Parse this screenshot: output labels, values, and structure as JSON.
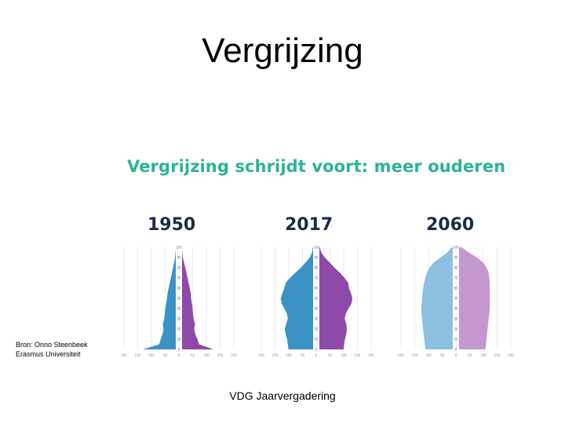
{
  "slide": {
    "title": "Vergrijzing",
    "source_line1": "Bron: Onno Steenbeek",
    "source_line2": "Erasmus Universiteit",
    "footer": "VDG Jaarvergadering"
  },
  "chart_data": {
    "type": "population-pyramid",
    "title": "Vergrijzing schrijdt voort: meer ouderen",
    "colors": {
      "male": "#3a93c4",
      "female": "#8e4aa8",
      "male_light": "#8dbfdf",
      "female_light": "#c498cf"
    },
    "age_ticks": [
      0,
      10,
      20,
      30,
      40,
      50,
      60,
      70,
      80,
      90,
      100
    ],
    "x_ticks": [
      200,
      150,
      100,
      50,
      0,
      50,
      100,
      150,
      200
    ],
    "xlim": [
      0,
      200
    ],
    "pyramids": [
      {
        "year": "1950",
        "ages": [
          0,
          5,
          10,
          15,
          20,
          25,
          30,
          35,
          40,
          45,
          50,
          55,
          60,
          65,
          70,
          75,
          80,
          85,
          90,
          95,
          100
        ],
        "male": [
          120,
          60,
          55,
          48,
          45,
          47,
          42,
          40,
          38,
          35,
          32,
          30,
          26,
          22,
          18,
          14,
          10,
          6,
          3,
          1,
          0
        ],
        "female": [
          115,
          62,
          56,
          48,
          44,
          47,
          42,
          40,
          38,
          36,
          33,
          32,
          28,
          24,
          20,
          16,
          12,
          7,
          3,
          1,
          0
        ]
      },
      {
        "year": "2017",
        "ages": [
          0,
          5,
          10,
          15,
          20,
          25,
          30,
          35,
          40,
          45,
          50,
          55,
          60,
          65,
          70,
          75,
          80,
          85,
          90,
          95,
          100
        ],
        "male": [
          90,
          92,
          95,
          100,
          103,
          98,
          92,
          95,
          105,
          115,
          118,
          112,
          105,
          100,
          85,
          65,
          45,
          28,
          12,
          4,
          1
        ],
        "female": [
          88,
          90,
          93,
          98,
          100,
          98,
          92,
          96,
          106,
          117,
          120,
          115,
          108,
          105,
          92,
          75,
          55,
          38,
          20,
          7,
          2
        ]
      },
      {
        "year": "2060",
        "ages": [
          0,
          5,
          10,
          15,
          20,
          25,
          30,
          35,
          40,
          45,
          50,
          55,
          60,
          65,
          70,
          75,
          80,
          85,
          90,
          95,
          100
        ],
        "male": [
          100,
          102,
          104,
          106,
          108,
          110,
          112,
          114,
          115,
          113,
          112,
          110,
          108,
          105,
          100,
          95,
          85,
          70,
          45,
          20,
          5
        ],
        "female": [
          96,
          98,
          100,
          102,
          104,
          106,
          108,
          110,
          112,
          112,
          112,
          112,
          112,
          112,
          110,
          108,
          100,
          88,
          65,
          35,
          10
        ]
      }
    ]
  }
}
